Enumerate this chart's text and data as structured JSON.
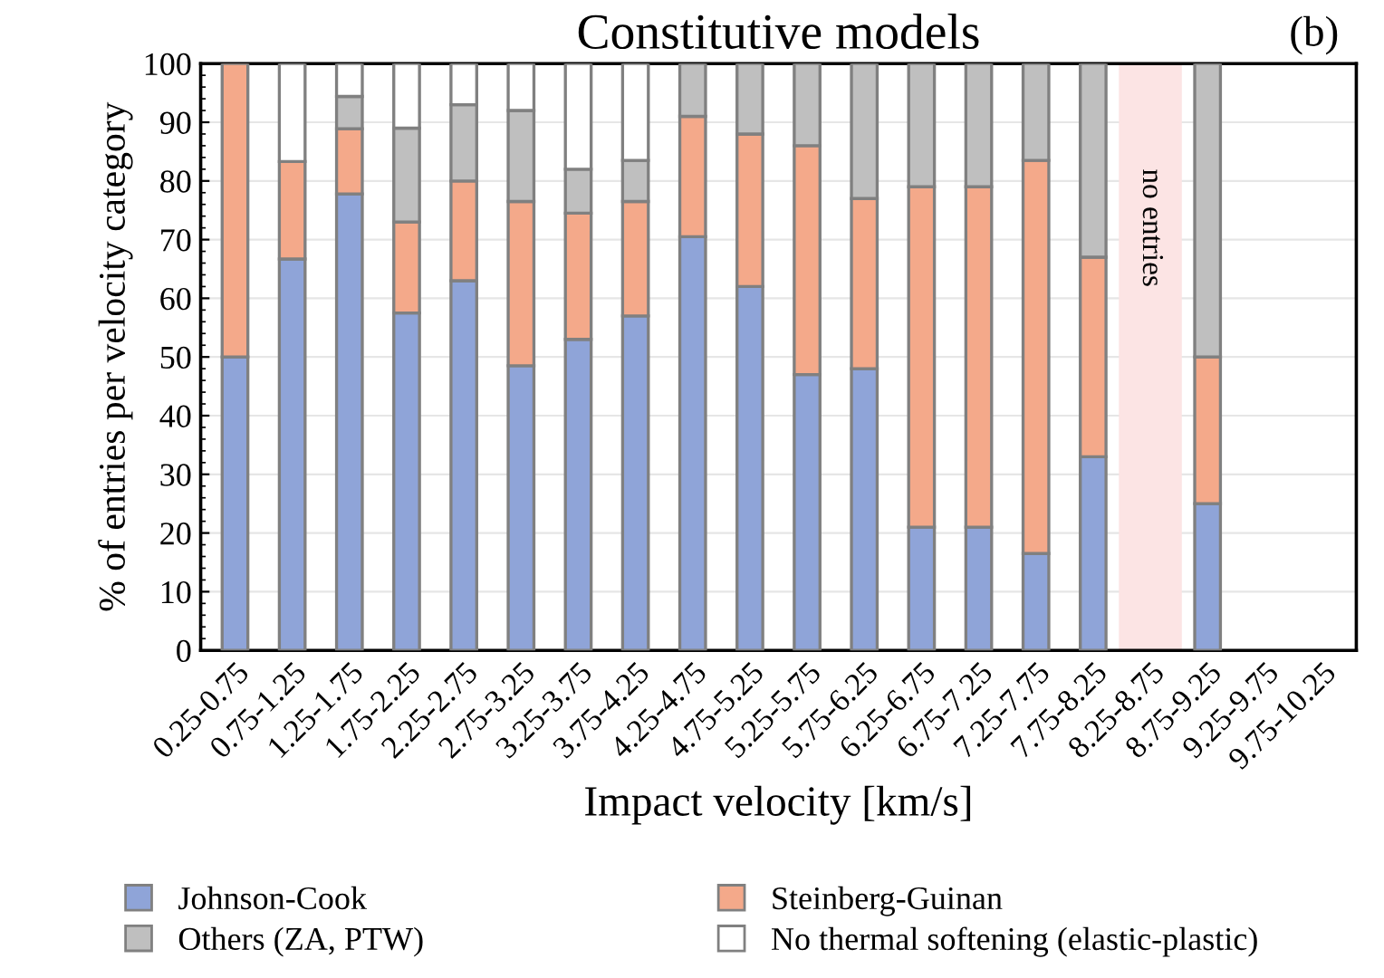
{
  "chart_data": {
    "type": "bar",
    "stacked": true,
    "title": "Constitutive models",
    "xlabel": "Impact velocity [km/s]",
    "ylabel": "% of entries per velocity category",
    "annotations": [
      "(b)"
    ],
    "categories": [
      "0.25-0.75",
      "0.75-1.25",
      "1.25-1.75",
      "1.75-2.25",
      "2.25-2.75",
      "2.75-3.25",
      "3.25-3.75",
      "3.75-4.25",
      "4.25-4.75",
      "4.75-5.25",
      "5.25-5.75",
      "5.75-6.25",
      "6.25-6.75",
      "6.75-7.25",
      "7.25-7.75",
      "7.75-8.25",
      "8.25-8.75",
      "8.75-9.25",
      "9.25-9.75",
      "9.75-10.25"
    ],
    "series": [
      {
        "name": "Johnson-Cook",
        "color": "#8fa4d8",
        "values": [
          50,
          66.7,
          77.8,
          57.5,
          63,
          48.5,
          53,
          57,
          70.5,
          62,
          47,
          48,
          21,
          21,
          16.5,
          33,
          null,
          25,
          null,
          null
        ]
      },
      {
        "name": "Steinberg-Guinan",
        "color": "#f4a98a",
        "values": [
          50,
          16.6,
          11.1,
          15.5,
          17,
          28,
          21.5,
          19.5,
          20.5,
          26,
          39,
          29,
          58,
          58,
          67,
          34,
          null,
          25,
          null,
          null
        ]
      },
      {
        "name": "Others (ZA, PTW)",
        "color": "#bfbfbf",
        "values": [
          0,
          0,
          5.5,
          16,
          13,
          15.5,
          7.5,
          7,
          9,
          12,
          14,
          23,
          21,
          21,
          16.5,
          33,
          null,
          50,
          null,
          null
        ]
      },
      {
        "name": "No thermal softening (elastic-plastic)",
        "color": "#ffffff",
        "values": [
          0,
          16.7,
          5.6,
          11,
          7,
          8,
          18,
          16.5,
          0,
          0,
          0,
          0,
          0,
          0,
          0,
          0,
          null,
          0,
          null,
          null
        ]
      }
    ],
    "bands": [
      {
        "axis": "x",
        "from": "8.25-8.75",
        "to": "8.25-8.75",
        "label": "no entries",
        "color": "#fce4e4"
      }
    ],
    "ylim": [
      0,
      100
    ],
    "yticks": [
      0,
      10,
      20,
      30,
      40,
      50,
      60,
      70,
      80,
      90,
      100
    ],
    "grid": "y",
    "legend": "bottom"
  }
}
